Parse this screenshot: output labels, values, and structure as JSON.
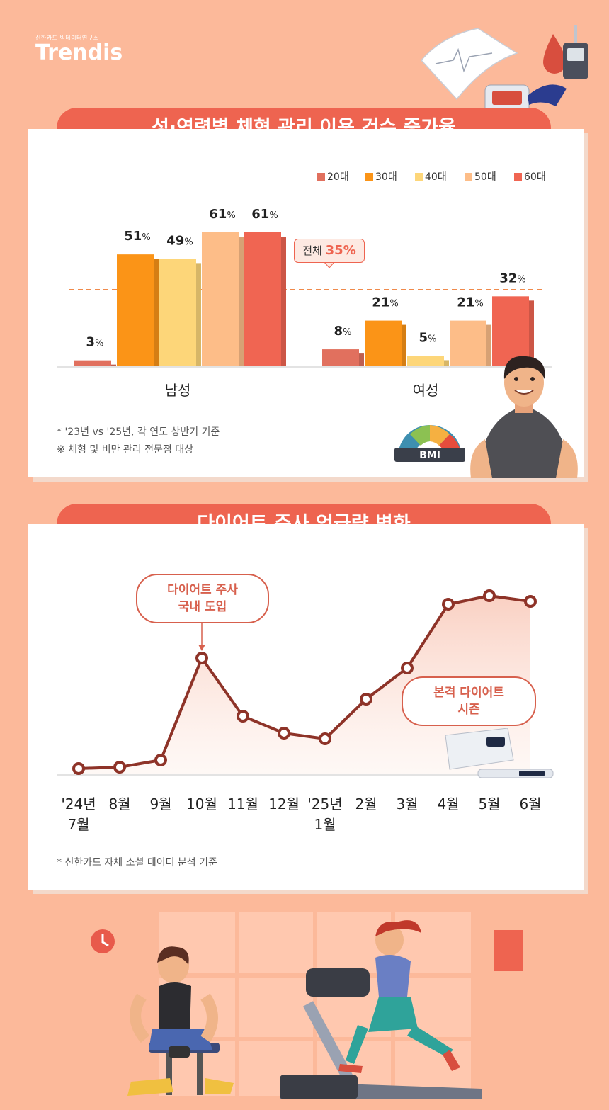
{
  "brand": {
    "sub": "신한카드 빅데이터연구소",
    "name": "Trendis"
  },
  "section1": {
    "title": "성·연령별 체형 관리 이용 건수 증가율",
    "total_label": "전체",
    "total_value": "35%",
    "notes": [
      "* '23년 vs '25년, 각 연도 상반기 기준",
      "※ 체형 및 비만 관리 전문점 대상"
    ],
    "bmi_label": "BMI"
  },
  "section2": {
    "title": "다이어트 주사 언급량 변화",
    "callout1": [
      "다이어트 주사",
      "국내 도입"
    ],
    "callout2": [
      "본격 다이어트",
      "시즌"
    ],
    "note": "* 신한카드 자체 소셜 데이터 분석 기준"
  },
  "chart_data": [
    {
      "type": "bar",
      "title": "성·연령별 체형 관리 이용 건수 증가율",
      "categories": [
        "남성",
        "여성"
      ],
      "series": [
        {
          "name": "20대",
          "values": [
            3,
            8
          ],
          "color": "#E1705E"
        },
        {
          "name": "30대",
          "values": [
            51,
            21
          ],
          "color": "#FB9417"
        },
        {
          "name": "40대",
          "values": [
            49,
            5
          ],
          "color": "#FDD679"
        },
        {
          "name": "50대",
          "values": [
            61,
            21
          ],
          "color": "#FDBD88"
        },
        {
          "name": "60대",
          "values": [
            61,
            32
          ],
          "color": "#F06552"
        }
      ],
      "value_suffix": "%",
      "reference_line": {
        "label": "전체",
        "value": 35
      },
      "ylim": [
        0,
        70
      ],
      "legend": "top-right"
    },
    {
      "type": "line",
      "title": "다이어트 주사 언급량 변화",
      "x": [
        "'24년 7월",
        "8월",
        "9월",
        "10월",
        "11월",
        "12월",
        "'25년 1월",
        "2월",
        "3월",
        "4월",
        "5월",
        "6월"
      ],
      "x_lines": [
        [
          "'24년",
          "7월"
        ],
        [
          "8월"
        ],
        [
          "9월"
        ],
        [
          "10월"
        ],
        [
          "11월"
        ],
        [
          "12월"
        ],
        [
          "'25년",
          "1월"
        ],
        [
          "2월"
        ],
        [
          "3월"
        ],
        [
          "4월"
        ],
        [
          "5월"
        ],
        [
          "6월"
        ]
      ],
      "y": [
        0,
        1,
        6,
        78,
        37,
        25,
        21,
        49,
        71,
        116,
        122,
        118
      ],
      "y_axis_shown": false,
      "ylim": [
        0,
        130
      ],
      "line_color": "#8E3328"
    }
  ]
}
